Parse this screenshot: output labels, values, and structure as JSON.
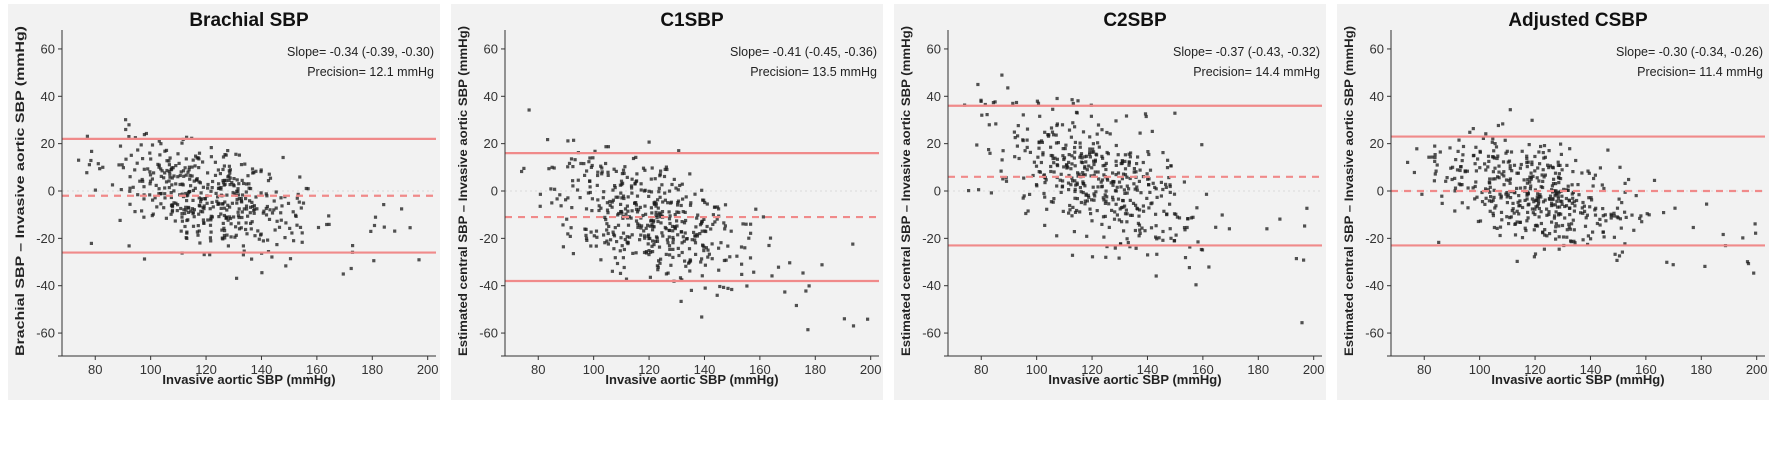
{
  "colors": {
    "panel_bg": "#f2f2f2",
    "limit_line": "#f08a8a",
    "points": "#1a1a1a",
    "zero_line": "#d9d9d9"
  },
  "chart_data": [
    {
      "type": "scatter",
      "title": "Brachial SBP",
      "slope_text": "Slope= -0.34 (-0.39, -0.30)",
      "precision_text": "Precision= 12.1 mmHg",
      "xlabel": "Invasive aortic SBP (mmHg)",
      "ylabel": "Brachial SBP – Invasive aortic SBP (mmHg)",
      "xlim": [
        68,
        203
      ],
      "ylim": [
        -68,
        68
      ],
      "xticks": [
        80,
        100,
        120,
        140,
        160,
        180,
        200
      ],
      "yticks": [
        -60,
        -40,
        -20,
        0,
        20,
        40,
        60
      ],
      "mean_bias": -2,
      "upper_loa": 22,
      "lower_loa": -26,
      "slope": -0.34,
      "center_x": 120,
      "spread": 10.5
    },
    {
      "type": "scatter",
      "title": "C1SBP",
      "slope_text": "Slope= -0.41 (-0.45, -0.36)",
      "precision_text": "Precision= 13.5 mmHg",
      "xlabel": "Invasive aortic SBP (mmHg)",
      "ylabel": "Estimated central SBP – Invasive aortic SBP (mmHg)",
      "xlim": [
        68,
        203
      ],
      "ylim": [
        -68,
        68
      ],
      "xticks": [
        80,
        100,
        120,
        140,
        160,
        180,
        200
      ],
      "yticks": [
        -60,
        -40,
        -20,
        0,
        20,
        40,
        60
      ],
      "mean_bias": -11,
      "upper_loa": 16,
      "lower_loa": -38,
      "slope": -0.41,
      "center_x": 120,
      "spread": 11.5
    },
    {
      "type": "scatter",
      "title": "C2SBP",
      "slope_text": "Slope= -0.37 (-0.43, -0.32)",
      "precision_text": "Precision= 14.4 mmHg",
      "xlabel": "Invasive aortic SBP (mmHg)",
      "ylabel": "Estimated central SBP – Invasive aortic SBP (mmHg)",
      "xlim": [
        68,
        203
      ],
      "ylim": [
        -68,
        68
      ],
      "xticks": [
        80,
        100,
        120,
        140,
        160,
        180,
        200
      ],
      "yticks": [
        -60,
        -40,
        -20,
        0,
        20,
        40,
        60
      ],
      "mean_bias": 6,
      "upper_loa": 36,
      "lower_loa": -23,
      "slope": -0.37,
      "center_x": 120,
      "spread": 12.5
    },
    {
      "type": "scatter",
      "title": "Adjusted CSBP",
      "slope_text": "Slope= -0.30 (-0.34, -0.26)",
      "precision_text": "Precision= 11.4 mmHg",
      "xlabel": "Invasive aortic SBP (mmHg)",
      "ylabel": "Estimated central SBP – Invasive aortic SBP (mmHg)",
      "xlim": [
        68,
        203
      ],
      "ylim": [
        -68,
        68
      ],
      "xticks": [
        80,
        100,
        120,
        140,
        160,
        180,
        200
      ],
      "yticks": [
        -60,
        -40,
        -20,
        0,
        20,
        40,
        60
      ],
      "mean_bias": 0,
      "upper_loa": 23,
      "lower_loa": -23,
      "slope": -0.3,
      "center_x": 120,
      "spread": 9.8
    }
  ]
}
